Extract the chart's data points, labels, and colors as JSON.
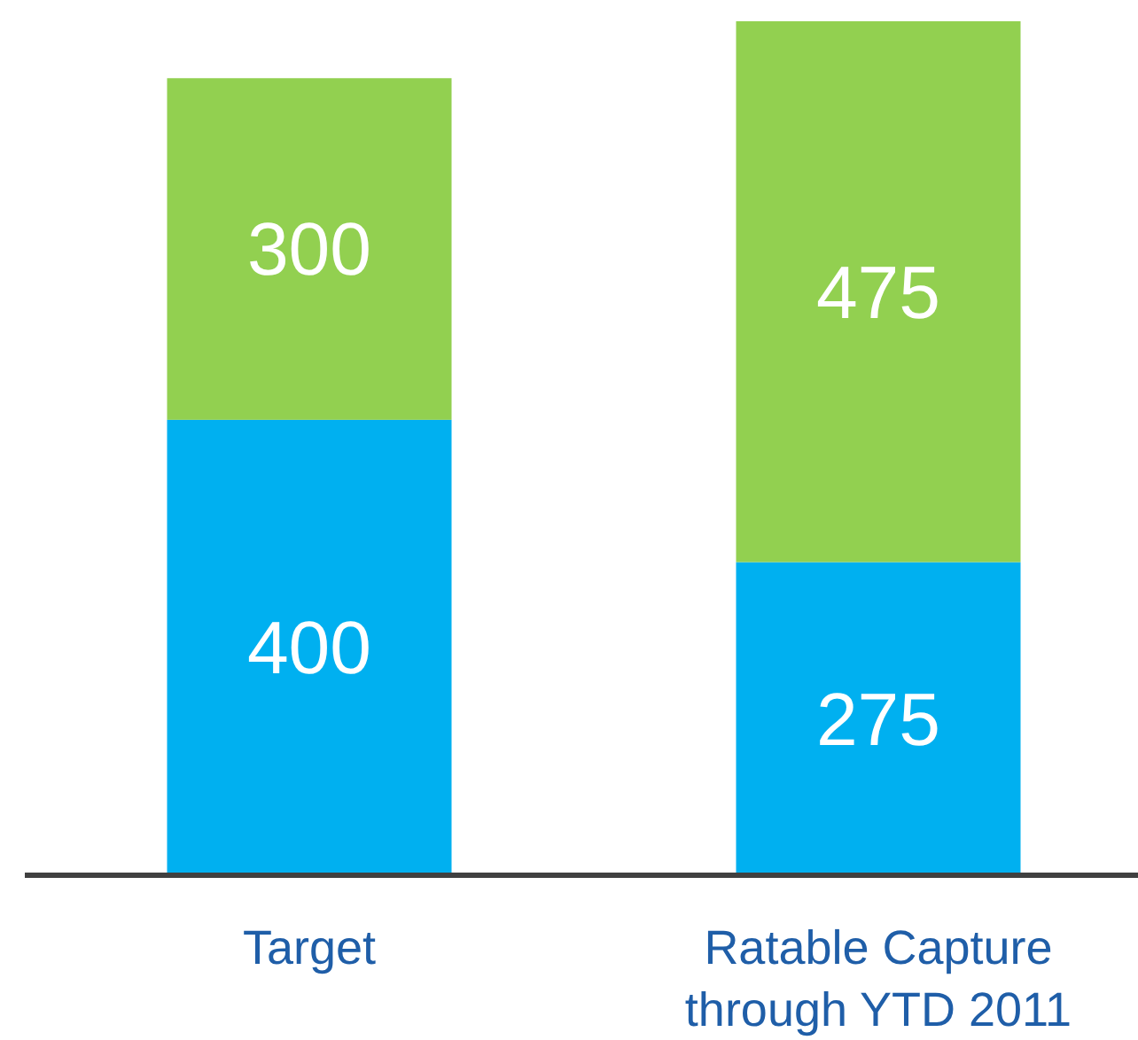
{
  "chart_data": {
    "type": "bar",
    "stacked": true,
    "data_labels": true,
    "categories": [
      "Target",
      "Ratable Capture through YTD 2011"
    ],
    "series": [
      {
        "color": "#00b0f0",
        "values": [
          400,
          275
        ]
      },
      {
        "color": "#92d050",
        "values": [
          300,
          475
        ]
      }
    ]
  }
}
